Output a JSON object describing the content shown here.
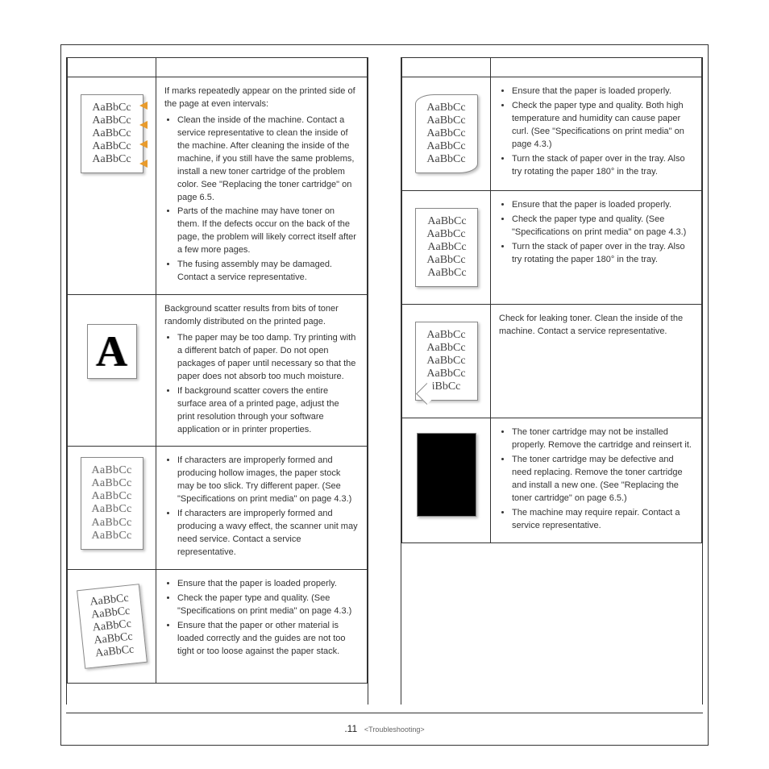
{
  "sample_text": [
    "AaBbCc",
    "AaBbCc",
    "AaBbCc",
    "AaBbCc",
    "AaBbCc"
  ],
  "sample_leak": [
    "AaBbCc",
    "AaBbCc",
    "AaBbCc",
    "AaBbCc",
    "iBbCc"
  ],
  "big_a": "A",
  "left_rows": [
    {
      "kind": "marks",
      "intro": "If marks repeatedly appear on the printed side of the page at even intervals:",
      "bullets": [
        "Clean the inside of the machine. Contact a service representative to clean the inside of the machine. After cleaning the inside of the machine, if you still have the same problems, install a new toner cartridge of the problem color. See \"Replacing the toner cartridge\" on page 6.5.",
        "Parts of the machine may have toner on them. If the defects occur on the back of the page, the problem will likely correct itself after a few more pages.",
        "The fusing assembly may be damaged. Contact a service representative."
      ]
    },
    {
      "kind": "big-a",
      "intro": "Background scatter results from bits of toner randomly distributed on the printed page.",
      "bullets": [
        "The paper may be too damp. Try printing with a different batch of paper. Do not open packages of paper until necessary so that the paper does not absorb too much moisture.",
        "If background scatter covers the entire surface area of a printed page, adjust the print resolution through your software application or in printer properties."
      ]
    },
    {
      "kind": "hollow",
      "intro": "",
      "bullets": [
        "If characters are improperly formed and producing hollow images, the paper stock may be too slick. Try different paper. (See \"Specifications on print media\" on page 4.3.)",
        "If characters are improperly formed and producing a wavy effect, the scanner unit may need service. Contact a service representative."
      ]
    },
    {
      "kind": "skew",
      "intro": "",
      "bullets": [
        "Ensure that the paper is loaded properly.",
        "Check the paper type and quality. (See \"Specifications on print media\" on page 4.3.)",
        "Ensure that the paper or other material is loaded correctly and the guides are not too tight or too loose against the paper stack."
      ]
    }
  ],
  "right_rows": [
    {
      "kind": "curl",
      "intro": "",
      "bullets": [
        "Ensure that the paper is loaded properly.",
        "Check the paper type and quality. Both high temperature and humidity can cause paper curl. (See \"Specifications on print media\" on page 4.3.)",
        "Turn the stack of paper over in the tray. Also try rotating the paper 180° in the tray."
      ]
    },
    {
      "kind": "wave",
      "intro": "",
      "bullets": [
        "Ensure that the paper is loaded properly.",
        "Check the paper type and quality. (See \"Specifications on print media\" on page 4.3.)",
        "Turn the stack of paper over in the tray. Also try rotating the paper 180° in the tray."
      ]
    },
    {
      "kind": "leak",
      "intro": "Check for leaking toner. Clean the inside of the machine. Contact a service representative.",
      "bullets": []
    },
    {
      "kind": "black",
      "intro": "",
      "bullets": [
        "The toner cartridge may not be installed properly. Remove the cartridge and reinsert it.",
        "The toner cartridge may be defective and need replacing. Remove the toner cartridge and install a new one. (See \"Replacing the toner cartridge\" on page 6.5.)",
        "The machine may require repair. Contact a service representative."
      ]
    }
  ],
  "footer": {
    "page": ".11",
    "section": "<Troubleshooting>"
  },
  "colors": {
    "accent": "#e89b2c",
    "border": "#333333",
    "text": "#333333"
  }
}
